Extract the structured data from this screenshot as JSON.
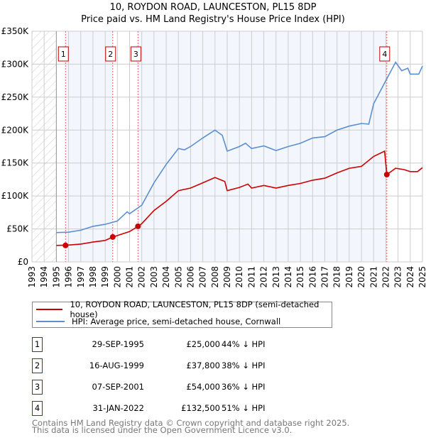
{
  "chart_data": {
    "type": "line",
    "title": "10, ROYDON ROAD, LAUNCESTON, PL15 8DP",
    "subtitle": "Price paid vs. HM Land Registry's House Price Index (HPI)",
    "xlim": [
      1993,
      2025
    ],
    "ylim": [
      0,
      350000
    ],
    "x_ticks": [
      "1993",
      "1994",
      "1995",
      "1996",
      "1997",
      "1998",
      "1999",
      "2000",
      "2001",
      "2002",
      "2003",
      "2004",
      "2005",
      "2006",
      "2007",
      "2008",
      "2009",
      "2010",
      "2011",
      "2012",
      "2013",
      "2014",
      "2015",
      "2016",
      "2017",
      "2018",
      "2019",
      "2020",
      "2021",
      "2022",
      "2023",
      "2024",
      "2025"
    ],
    "y_ticks": [
      {
        "value": 0,
        "label": "£0"
      },
      {
        "value": 50000,
        "label": "£50K"
      },
      {
        "value": 100000,
        "label": "£100K"
      },
      {
        "value": 150000,
        "label": "£150K"
      },
      {
        "value": 200000,
        "label": "£200K"
      },
      {
        "value": 250000,
        "label": "£250K"
      },
      {
        "value": 300000,
        "label": "£300K"
      },
      {
        "value": 350000,
        "label": "£350K"
      }
    ],
    "grid": true,
    "series": [
      {
        "name": "10, ROYDON ROAD, LAUNCESTON, PL15 8DP (semi-detached house)",
        "color": "#cc0000",
        "x": [
          1995,
          1996,
          1997,
          1998,
          1999,
          1999.62,
          2000,
          2001,
          2001.69,
          2002,
          2003,
          2004,
          2005,
          2006,
          2007,
          2008,
          2008.8,
          2009,
          2010,
          2010.7,
          2011,
          2012,
          2013,
          2014,
          2015,
          2016,
          2017,
          2018,
          2019,
          2020,
          2021,
          2021.9,
          2022.08,
          2022.8,
          2023.5,
          2024,
          2024.6,
          2025
        ],
        "y": [
          25000,
          25500,
          27000,
          30000,
          32500,
          37800,
          40000,
          46000,
          54000,
          58000,
          78000,
          92000,
          108000,
          112000,
          120000,
          128000,
          122000,
          108000,
          113000,
          118000,
          112000,
          116000,
          112000,
          116000,
          119000,
          124000,
          127000,
          135000,
          142000,
          145000,
          160000,
          168000,
          132500,
          142000,
          140000,
          137000,
          137000,
          143000
        ]
      },
      {
        "name": "HPI: Average price, semi-detached house, Cornwall",
        "color": "#5b8fd0",
        "x": [
          1995,
          1996,
          1997,
          1998,
          1999,
          2000,
          2000.8,
          2001,
          2002,
          2003,
          2004,
          2005,
          2005.5,
          2006,
          2007,
          2008,
          2008.6,
          2009,
          2010,
          2010.5,
          2011,
          2012,
          2013,
          2014,
          2015,
          2016,
          2017,
          2018,
          2019,
          2020,
          2020.6,
          2021,
          2022,
          2022.8,
          2023.3,
          2023.8,
          2024,
          2024.7,
          2025
        ],
        "y": [
          44500,
          45000,
          48000,
          54000,
          57000,
          62000,
          76000,
          73000,
          86000,
          120000,
          148000,
          172000,
          170000,
          175000,
          188000,
          200000,
          192000,
          168000,
          175000,
          180000,
          172000,
          176000,
          169000,
          175000,
          180000,
          188000,
          190000,
          200000,
          206000,
          210000,
          209000,
          240000,
          275000,
          303000,
          290000,
          294000,
          285000,
          285000,
          297000
        ]
      }
    ],
    "sales": [
      {
        "id": "1",
        "x": 1995.75,
        "date": "29-SEP-1995",
        "price": "£25,000",
        "value": 25000,
        "hpi": "44% ↓ HPI"
      },
      {
        "id": "2",
        "x": 1999.62,
        "date": "16-AUG-1999",
        "price": "£37,800",
        "value": 37800,
        "hpi": "38% ↓ HPI"
      },
      {
        "id": "3",
        "x": 2001.69,
        "date": "07-SEP-2001",
        "price": "£54,000",
        "value": 54000,
        "hpi": "36% ↓ HPI"
      },
      {
        "id": "4",
        "x": 2022.08,
        "date": "31-JAN-2022",
        "price": "£132,500",
        "value": 132500,
        "hpi": "51% ↓ HPI"
      }
    ],
    "hatched_before": 1995
  },
  "footer": {
    "line1": "Contains HM Land Registry data © Crown copyright and database right 2025.",
    "line2": "This data is licensed under the Open Government Licence v3.0."
  }
}
